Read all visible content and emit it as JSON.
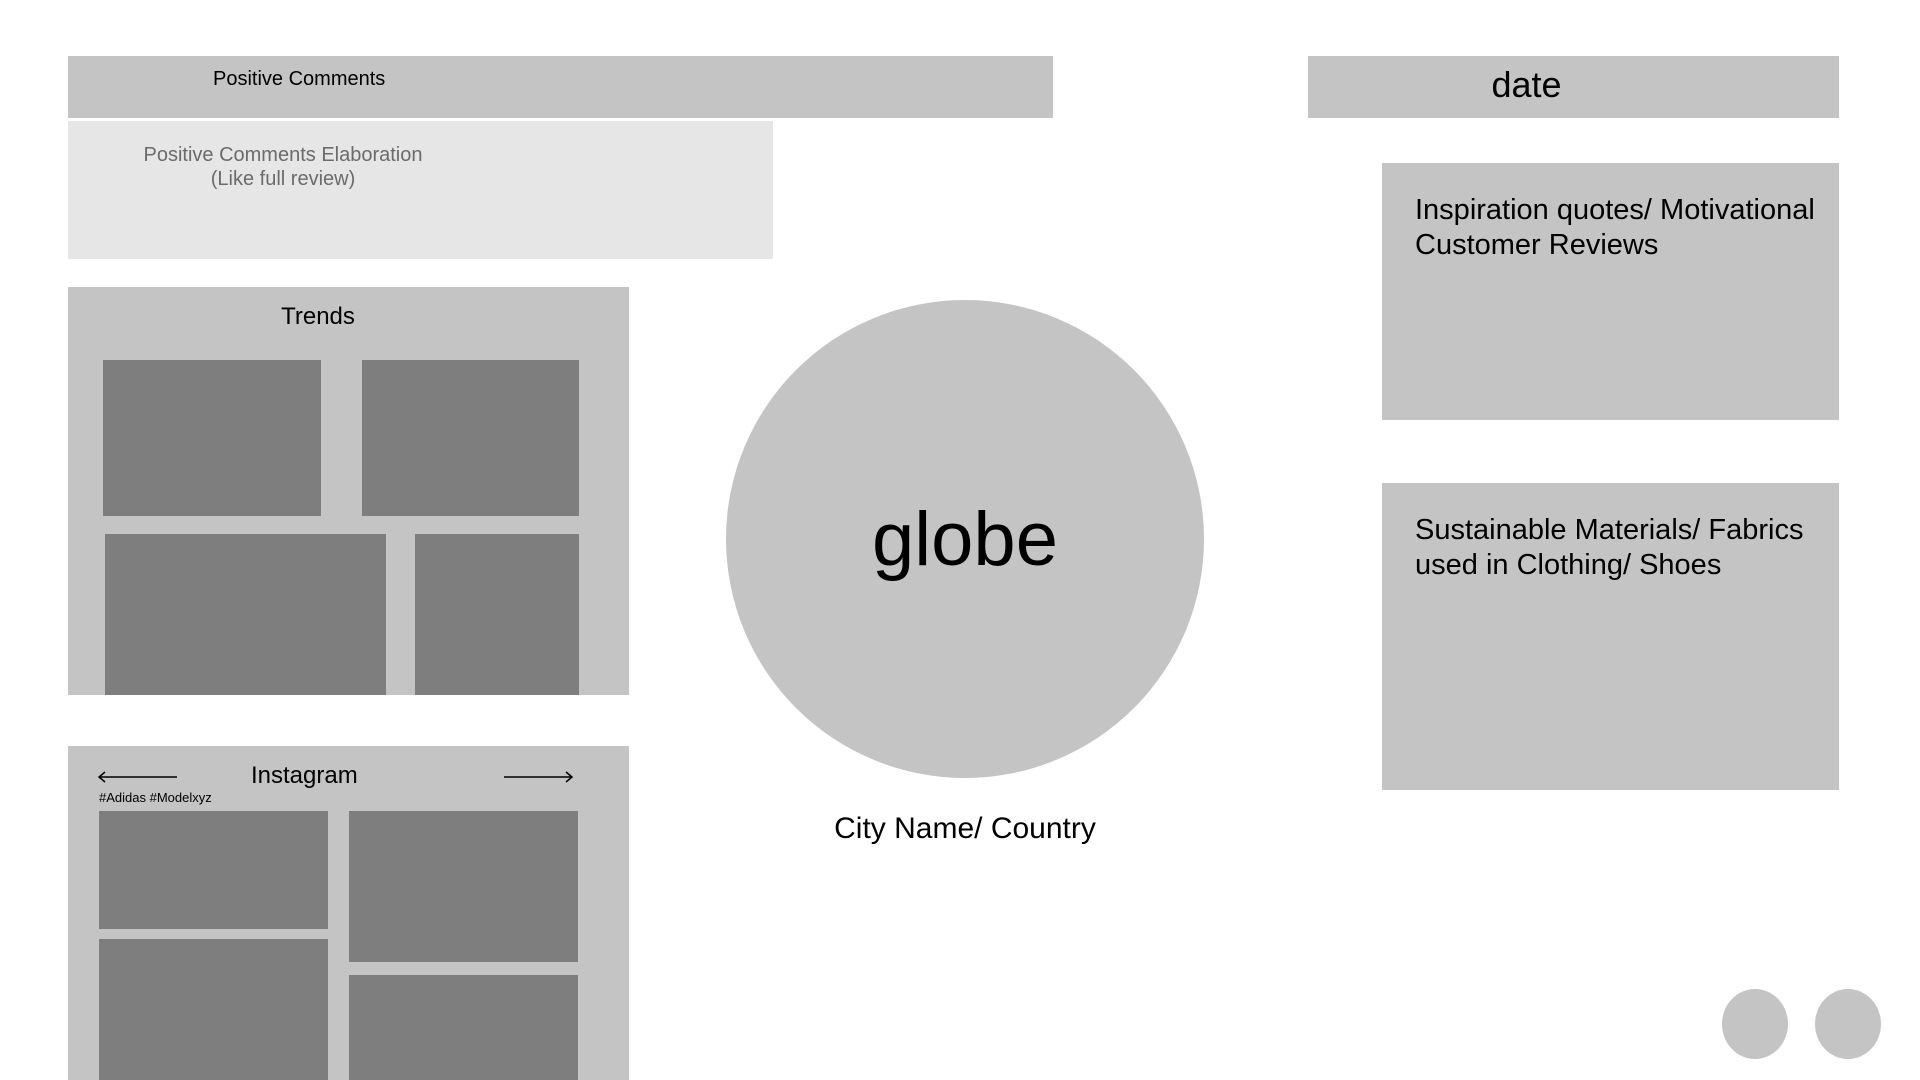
{
  "comments": {
    "title": "Positive Comments",
    "elaboration_line1": "Positive Comments Elaboration",
    "elaboration_line2": "(Like full review)"
  },
  "date": {
    "label": "date"
  },
  "trends": {
    "title": "Trends",
    "tile_count": 4
  },
  "globe": {
    "label": "globe",
    "city": "City Name/ Country"
  },
  "quotes": {
    "text": "Inspiration quotes/ Motivational Customer Reviews"
  },
  "materials": {
    "text": "Sustainable Materials/ Fabrics used in Clothing/ Shoes"
  },
  "instagram": {
    "title": "Instagram",
    "hashtags": "#Adidas #Modelxyz",
    "prev_icon": "arrow-left-icon",
    "next_icon": "arrow-right-icon",
    "tile_count": 4
  },
  "pagination": {
    "dot_count": 2
  },
  "colors": {
    "panel": "#c4c4c4",
    "panel_light": "#e6e6e6",
    "tile": "#7e7e7e",
    "muted_text": "#6b6b6b"
  }
}
